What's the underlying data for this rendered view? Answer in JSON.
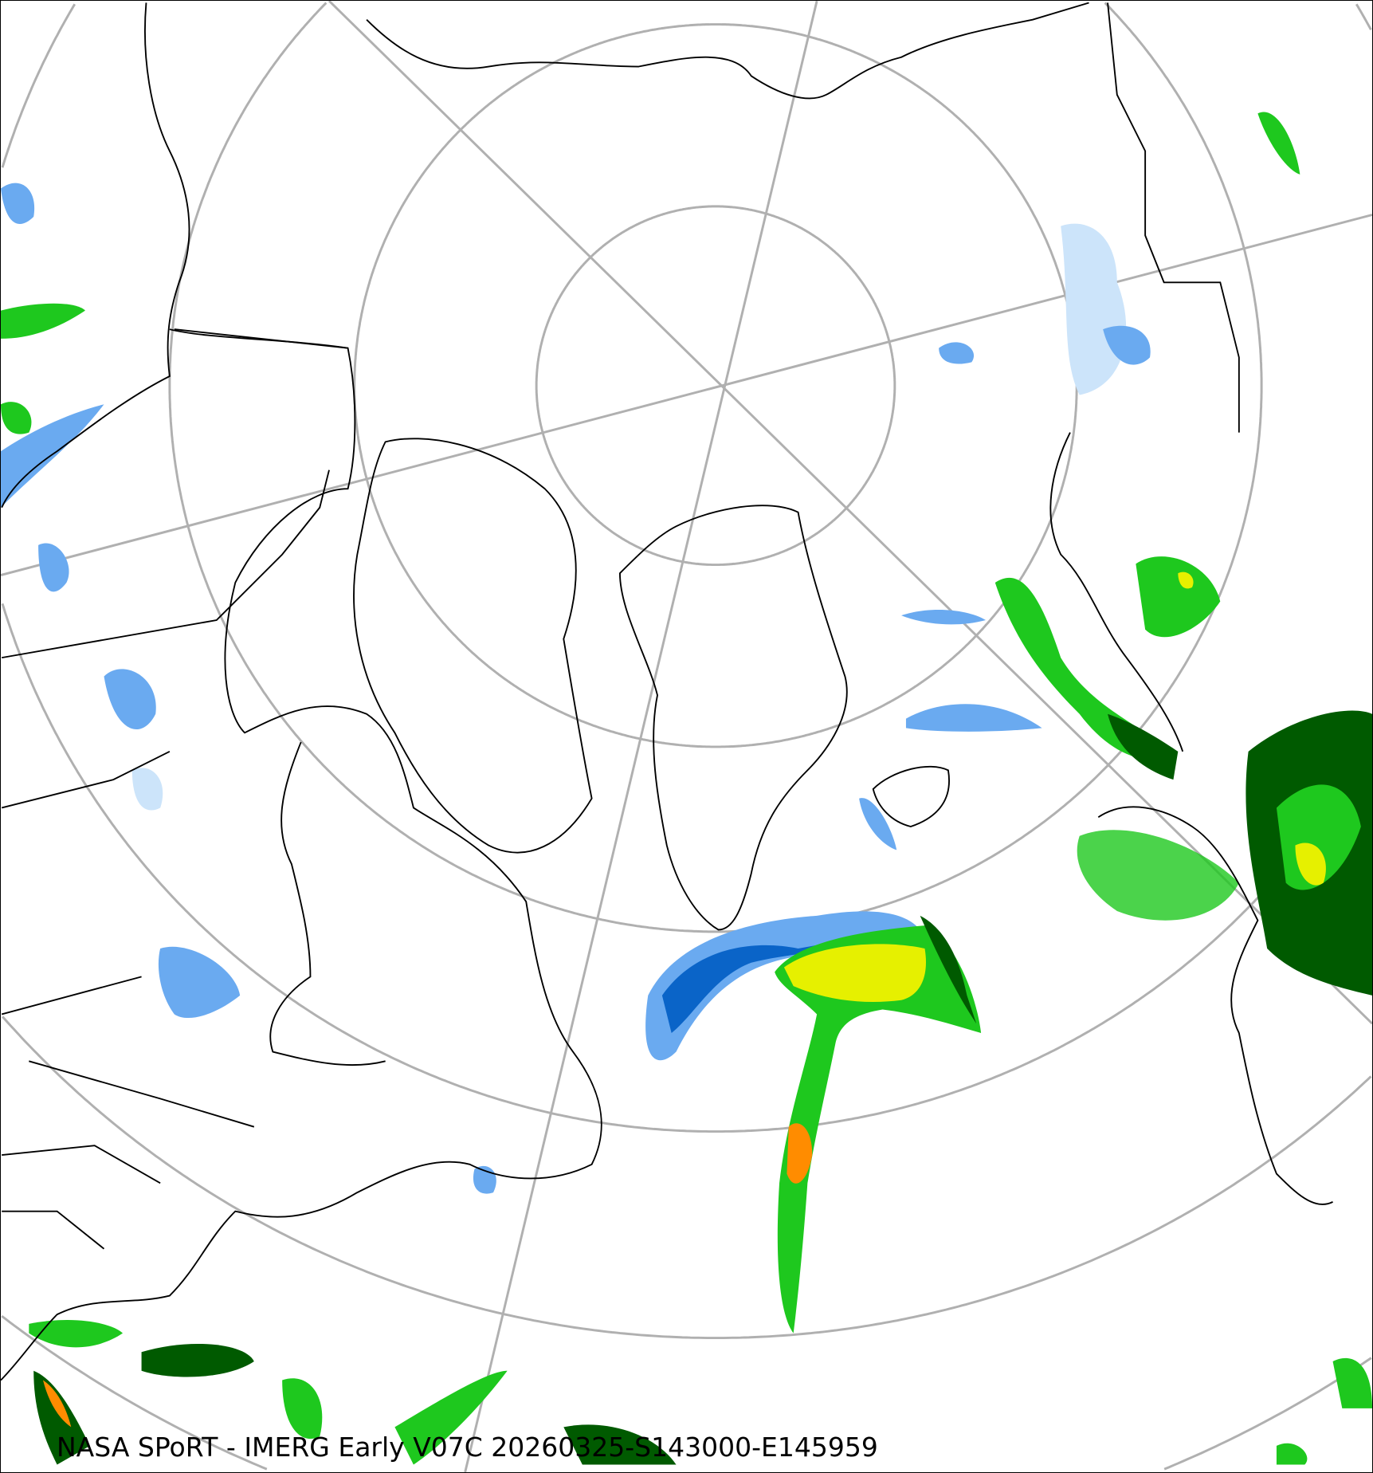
{
  "map": {
    "projection": "north polar stereographic",
    "product_caption": "NASA SPoRT - IMERG Early V07C 20260325-S143000-E145959",
    "colors": {
      "graticule": "#b0b0b0",
      "coastline": "#000000",
      "snow_light": "#cce4fa",
      "snow_medium": "#6aaaf0",
      "snow_heavy": "#0a64c8",
      "rain_light": "#005a00",
      "rain_moderate": "#1ec81e",
      "rain_heavy": "#e6f000",
      "rain_intense": "#ff8c00",
      "rain_extreme": "#e60000"
    }
  }
}
